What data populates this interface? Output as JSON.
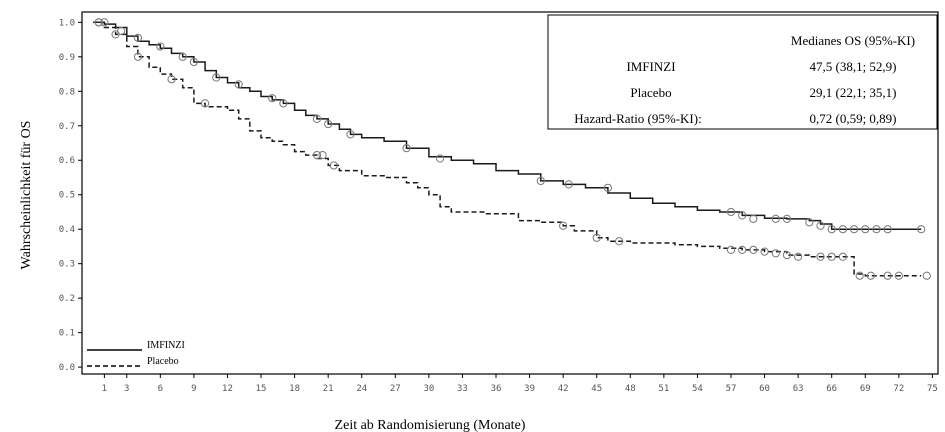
{
  "chart_data": {
    "type": "line",
    "xlabel": "Zeit ab Randomisierung (Monate)",
    "ylabel": "Wahrscheinlichkeit für OS",
    "xlim": [
      -1,
      75.5
    ],
    "ylim": [
      -0.02,
      1.03
    ],
    "x_ticks": [
      "1",
      "3",
      "6",
      "9",
      "12",
      "15",
      "18",
      "21",
      "24",
      "27",
      "30",
      "33",
      "36",
      "39",
      "42",
      "45",
      "48",
      "51",
      "54",
      "57",
      "60",
      "63",
      "66",
      "69",
      "72",
      "75"
    ],
    "y_ticks": [
      "0.0",
      "0.1",
      "0.2",
      "0.3",
      "0.4",
      "0.5",
      "0.6",
      "0.7",
      "0.8",
      "0.9",
      "1.0"
    ],
    "grid": false,
    "legend_position": "bottom-left",
    "series": [
      {
        "name": "IMFINZI",
        "style": "solid",
        "points": [
          [
            0,
            1.0
          ],
          [
            1,
            0.995
          ],
          [
            2,
            0.985
          ],
          [
            3,
            0.96
          ],
          [
            4,
            0.945
          ],
          [
            5,
            0.935
          ],
          [
            6,
            0.925
          ],
          [
            7,
            0.91
          ],
          [
            8,
            0.9
          ],
          [
            9,
            0.885
          ],
          [
            10,
            0.86
          ],
          [
            11,
            0.84
          ],
          [
            12,
            0.825
          ],
          [
            13,
            0.81
          ],
          [
            14,
            0.8
          ],
          [
            15,
            0.785
          ],
          [
            16,
            0.775
          ],
          [
            17,
            0.765
          ],
          [
            18,
            0.745
          ],
          [
            19,
            0.73
          ],
          [
            20,
            0.72
          ],
          [
            21,
            0.705
          ],
          [
            22,
            0.69
          ],
          [
            23,
            0.675
          ],
          [
            24,
            0.665
          ],
          [
            26,
            0.655
          ],
          [
            28,
            0.635
          ],
          [
            30,
            0.61
          ],
          [
            32,
            0.6
          ],
          [
            34,
            0.59
          ],
          [
            36,
            0.57
          ],
          [
            38,
            0.56
          ],
          [
            40,
            0.54
          ],
          [
            42,
            0.53
          ],
          [
            44,
            0.52
          ],
          [
            46,
            0.505
          ],
          [
            48,
            0.49
          ],
          [
            50,
            0.475
          ],
          [
            52,
            0.465
          ],
          [
            54,
            0.455
          ],
          [
            56,
            0.45
          ],
          [
            58,
            0.44
          ],
          [
            60,
            0.432
          ],
          [
            62,
            0.43
          ],
          [
            64,
            0.425
          ],
          [
            65,
            0.415
          ],
          [
            66,
            0.4
          ],
          [
            68,
            0.4
          ],
          [
            70,
            0.4
          ],
          [
            74,
            0.4
          ]
        ],
        "censored": [
          [
            0.5,
            1.0
          ],
          [
            1,
            1.0
          ],
          [
            2.5,
            0.975
          ],
          [
            4,
            0.955
          ],
          [
            6,
            0.93
          ],
          [
            8,
            0.9
          ],
          [
            9,
            0.885
          ],
          [
            11,
            0.84
          ],
          [
            13,
            0.82
          ],
          [
            16,
            0.78
          ],
          [
            17,
            0.765
          ],
          [
            20,
            0.72
          ],
          [
            21,
            0.705
          ],
          [
            23,
            0.675
          ],
          [
            28,
            0.635
          ],
          [
            31,
            0.605
          ],
          [
            40,
            0.54
          ],
          [
            42.5,
            0.53
          ],
          [
            46,
            0.52
          ],
          [
            57,
            0.45
          ],
          [
            58,
            0.44
          ],
          [
            59,
            0.43
          ],
          [
            61,
            0.43
          ],
          [
            62,
            0.43
          ],
          [
            64,
            0.42
          ],
          [
            65,
            0.41
          ],
          [
            66,
            0.4
          ],
          [
            67,
            0.4
          ],
          [
            68,
            0.4
          ],
          [
            69,
            0.4
          ],
          [
            70,
            0.4
          ],
          [
            71,
            0.4
          ],
          [
            74,
            0.4
          ]
        ]
      },
      {
        "name": "Placebo",
        "style": "dashed",
        "points": [
          [
            0,
            1.0
          ],
          [
            1,
            0.985
          ],
          [
            2,
            0.965
          ],
          [
            3,
            0.93
          ],
          [
            4,
            0.9
          ],
          [
            5,
            0.87
          ],
          [
            6,
            0.85
          ],
          [
            7,
            0.835
          ],
          [
            8,
            0.81
          ],
          [
            9,
            0.765
          ],
          [
            10,
            0.755
          ],
          [
            12,
            0.745
          ],
          [
            13,
            0.72
          ],
          [
            14,
            0.685
          ],
          [
            15,
            0.665
          ],
          [
            16,
            0.655
          ],
          [
            17,
            0.645
          ],
          [
            18,
            0.625
          ],
          [
            19,
            0.615
          ],
          [
            20,
            0.605
          ],
          [
            21,
            0.585
          ],
          [
            22,
            0.57
          ],
          [
            24,
            0.555
          ],
          [
            26,
            0.55
          ],
          [
            28,
            0.535
          ],
          [
            29,
            0.52
          ],
          [
            30,
            0.5
          ],
          [
            31,
            0.465
          ],
          [
            32,
            0.45
          ],
          [
            35,
            0.445
          ],
          [
            38,
            0.425
          ],
          [
            40,
            0.42
          ],
          [
            42,
            0.41
          ],
          [
            43,
            0.395
          ],
          [
            45,
            0.375
          ],
          [
            46,
            0.365
          ],
          [
            48,
            0.36
          ],
          [
            52,
            0.355
          ],
          [
            54,
            0.35
          ],
          [
            56,
            0.345
          ],
          [
            58,
            0.34
          ],
          [
            60,
            0.335
          ],
          [
            62,
            0.325
          ],
          [
            64,
            0.32
          ],
          [
            67,
            0.32
          ],
          [
            68,
            0.27
          ],
          [
            69,
            0.265
          ],
          [
            74,
            0.265
          ]
        ],
        "censored": [
          [
            0.5,
            1.0
          ],
          [
            2,
            0.965
          ],
          [
            4,
            0.9
          ],
          [
            7,
            0.835
          ],
          [
            10,
            0.765
          ],
          [
            20,
            0.615
          ],
          [
            20.5,
            0.615
          ],
          [
            21.5,
            0.585
          ],
          [
            42,
            0.41
          ],
          [
            45,
            0.375
          ],
          [
            47,
            0.365
          ],
          [
            57,
            0.34
          ],
          [
            58,
            0.34
          ],
          [
            59,
            0.34
          ],
          [
            60,
            0.335
          ],
          [
            61,
            0.33
          ],
          [
            62,
            0.325
          ],
          [
            63,
            0.32
          ],
          [
            65,
            0.32
          ],
          [
            66,
            0.32
          ],
          [
            67,
            0.32
          ],
          [
            68.5,
            0.265
          ],
          [
            69.5,
            0.265
          ],
          [
            71,
            0.265
          ],
          [
            72,
            0.265
          ],
          [
            74.5,
            0.265
          ]
        ]
      }
    ],
    "stats_table": {
      "header": [
        "",
        "Medianes OS (95%-KI)"
      ],
      "rows": [
        [
          "IMFINZI",
          "47,5 (38,1; 52,9)"
        ],
        [
          "Placebo",
          "29,1 (22,1; 35,1)"
        ],
        [
          "Hazard-Ratio (95%-KI):",
          "0,72 (0,59; 0,89)"
        ]
      ]
    }
  }
}
